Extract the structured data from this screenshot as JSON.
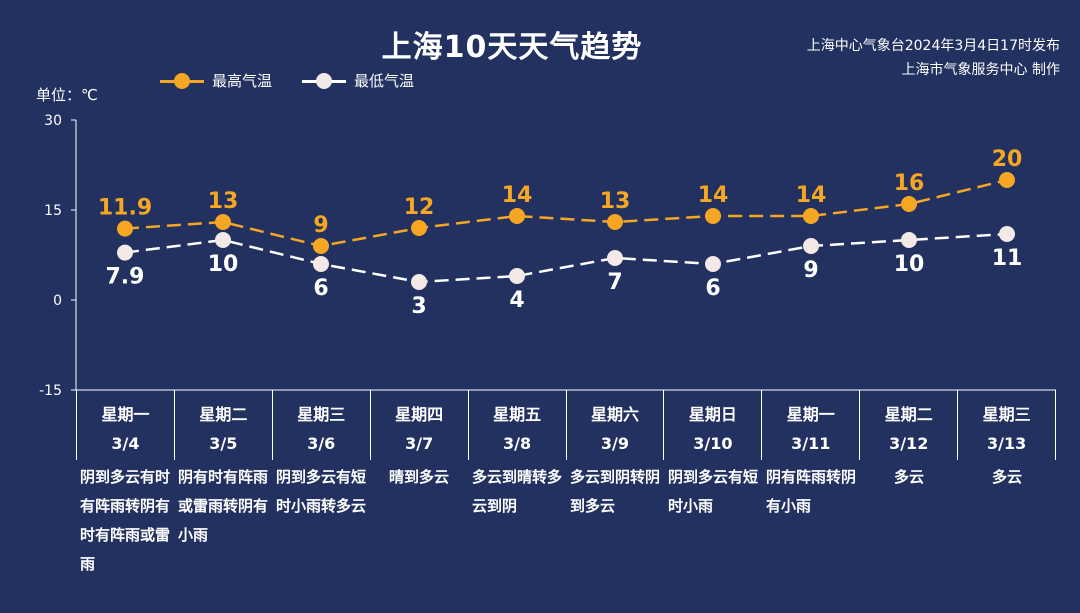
{
  "title": "上海10天天气趋势",
  "source_line1": "上海中心气象台2024年3月4日17时发布",
  "source_line2": "上海市气象服务中心 制作",
  "unit_label": "单位：℃",
  "legend": {
    "high": "最高气温",
    "low": "最低气温"
  },
  "colors": {
    "background": "#22315f",
    "high": "#f5a623",
    "low": "#ffffff",
    "low_fill": "#f3e9e6"
  },
  "chart_data": {
    "type": "line",
    "categories": [
      "3/4",
      "3/5",
      "3/6",
      "3/7",
      "3/8",
      "3/9",
      "3/10",
      "3/11",
      "3/12",
      "3/13"
    ],
    "series": [
      {
        "name": "最高气温",
        "values": [
          11.9,
          13,
          9,
          12,
          14,
          13,
          14,
          14,
          16,
          20
        ],
        "labels": [
          "11.9",
          "13",
          "9",
          "12",
          "14",
          "13",
          "14",
          "14",
          "16",
          "20"
        ]
      },
      {
        "name": "最低气温",
        "values": [
          7.9,
          10,
          6,
          3,
          4,
          7,
          6,
          9,
          10,
          11
        ],
        "labels": [
          "7.9",
          "10",
          "6",
          "3",
          "4",
          "7",
          "6",
          "9",
          "10",
          "11"
        ]
      }
    ],
    "ylim": [
      -15,
      30
    ],
    "yticks": [
      "30",
      "15",
      "0",
      "-15"
    ],
    "line_style": "dashed",
    "legend_position": "top-left"
  },
  "days": [
    {
      "weekday": "星期一",
      "date": "3/4",
      "weather": "阴到多云有时有阵雨转阴有时有阵雨或雷雨"
    },
    {
      "weekday": "星期二",
      "date": "3/5",
      "weather": "阴有时有阵雨或雷雨转阴有小雨"
    },
    {
      "weekday": "星期三",
      "date": "3/6",
      "weather": "阴到多云有短时小雨转多云"
    },
    {
      "weekday": "星期四",
      "date": "3/7",
      "weather": "晴到多云"
    },
    {
      "weekday": "星期五",
      "date": "3/8",
      "weather": "多云到晴转多云到阴"
    },
    {
      "weekday": "星期六",
      "date": "3/9",
      "weather": "多云到阴转阴到多云"
    },
    {
      "weekday": "星期日",
      "date": "3/10",
      "weather": "阴到多云有短时小雨"
    },
    {
      "weekday": "星期一",
      "date": "3/11",
      "weather": "阴有阵雨转阴有小雨"
    },
    {
      "weekday": "星期二",
      "date": "3/12",
      "weather": "多云"
    },
    {
      "weekday": "星期三",
      "date": "3/13",
      "weather": "多云"
    }
  ]
}
